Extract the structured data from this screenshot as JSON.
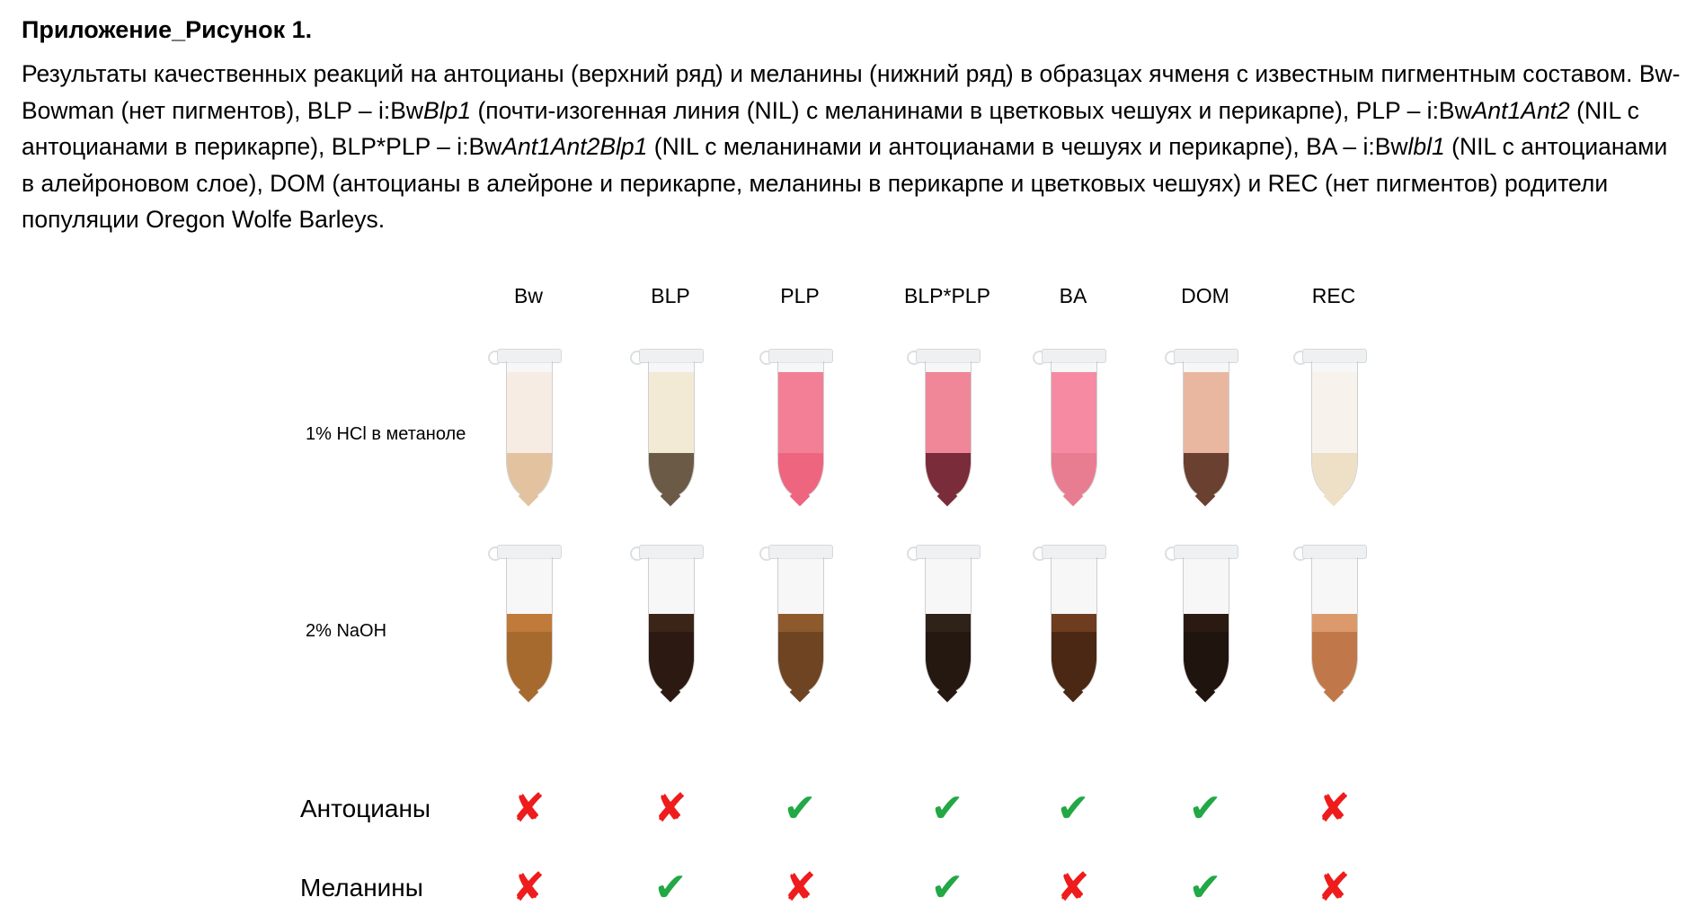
{
  "title": "Приложение_Рисунок 1.",
  "caption": {
    "p1": "Результаты качественных реакций на антоцианы (верхний ряд) и меланины (нижний ряд) в образцах ячменя с известным пигментным составом. Bw- Bowman (нет пигментов), BLP – i:Bw",
    "i1": "Blp1",
    "p2": " (почти-изогенная линия (NIL) с меланинами в цветковых чешуях и перикарпе), PLP – i:Bw",
    "i2": "Ant1Ant2",
    "p3": " (NIL с антоцианами в перикарпе), BLP*PLP – i:Bw",
    "i3": "Ant1Ant2Blp1",
    "p4": " (NIL с меланинами и антоцианами в чешуях и перикарпе), BA – i:Bw",
    "i4": "lbl1",
    "p5": " (NIL с антоцианами в алейроновом слое), DOM (антоцианы в алейроне и перикарпе, меланины в перикарпе и цветковых чешуях) и REC (нет пигментов) родители популяции Oregon Wolfe Barleys."
  },
  "row_labels": {
    "hcl": "1% HCl в метаноле",
    "naoh": "2% NaOH"
  },
  "result_labels": {
    "anthocyanins": "Антоцианы",
    "melanins": "Меланины"
  },
  "symbols": {
    "yes": "✔",
    "no": "✘"
  },
  "samples": [
    {
      "name": "Bw",
      "anthocyanins": false,
      "melanins": false,
      "hcl": {
        "liquid": "#f6ece4",
        "sediment": "#e3c2a0"
      },
      "naoh": {
        "liquid": "#c07a3a",
        "sediment": "#a66a2e"
      }
    },
    {
      "name": "BLP",
      "anthocyanins": false,
      "melanins": true,
      "hcl": {
        "liquid": "#f3ead6",
        "sediment": "#6b5a46"
      },
      "naoh": {
        "liquid": "#3b2418",
        "sediment": "#2c1a12"
      }
    },
    {
      "name": "PLP",
      "anthocyanins": true,
      "melanins": false,
      "hcl": {
        "liquid": "#f27f95",
        "sediment": "#ee6580"
      },
      "naoh": {
        "liquid": "#8c5a2c",
        "sediment": "#6e4422"
      }
    },
    {
      "name": "BLP*PLP",
      "anthocyanins": true,
      "melanins": true,
      "hcl": {
        "liquid": "#ef8798",
        "sediment": "#7a2c3a"
      },
      "naoh": {
        "liquid": "#2f2218",
        "sediment": "#241810"
      }
    },
    {
      "name": "BA",
      "anthocyanins": true,
      "melanins": false,
      "hcl": {
        "liquid": "#f58aa2",
        "sediment": "#e87d92"
      },
      "naoh": {
        "liquid": "#6e3c1e",
        "sediment": "#4a2814"
      }
    },
    {
      "name": "DOM",
      "anthocyanins": true,
      "melanins": true,
      "hcl": {
        "liquid": "#e9b7a0",
        "sediment": "#6a4030"
      },
      "naoh": {
        "liquid": "#2a1a12",
        "sediment": "#20140e"
      }
    },
    {
      "name": "REC",
      "anthocyanins": false,
      "melanins": false,
      "hcl": {
        "liquid": "#f7f3ec",
        "sediment": "#eee0c6"
      },
      "naoh": {
        "liquid": "#dc9a6c",
        "sediment": "#c0784a"
      }
    }
  ]
}
